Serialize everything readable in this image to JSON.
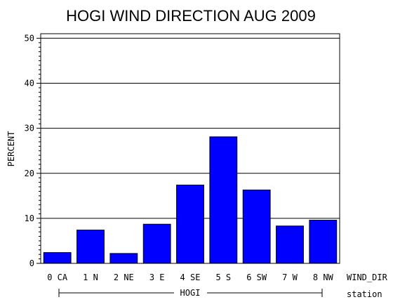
{
  "chart_data": {
    "type": "bar",
    "title": "HOGI WIND DIRECTION AUG 2009",
    "ylabel": "PERCENT",
    "xlabel": "WIND_DIR",
    "group_axis_label": "station",
    "group_label": "HOGI",
    "categories": [
      "0 CA",
      "1 N",
      "2 NE",
      "3 E",
      "4 SE",
      "5 S",
      "6 SW",
      "7 W",
      "8 NW"
    ],
    "values": [
      2.4,
      7.4,
      2.2,
      8.7,
      17.4,
      28.1,
      16.3,
      8.3,
      9.6
    ],
    "ylim": [
      0,
      51
    ],
    "yticks": [
      0,
      10,
      20,
      30,
      40,
      50
    ],
    "grid": true,
    "bar_color": "#0000ff"
  }
}
